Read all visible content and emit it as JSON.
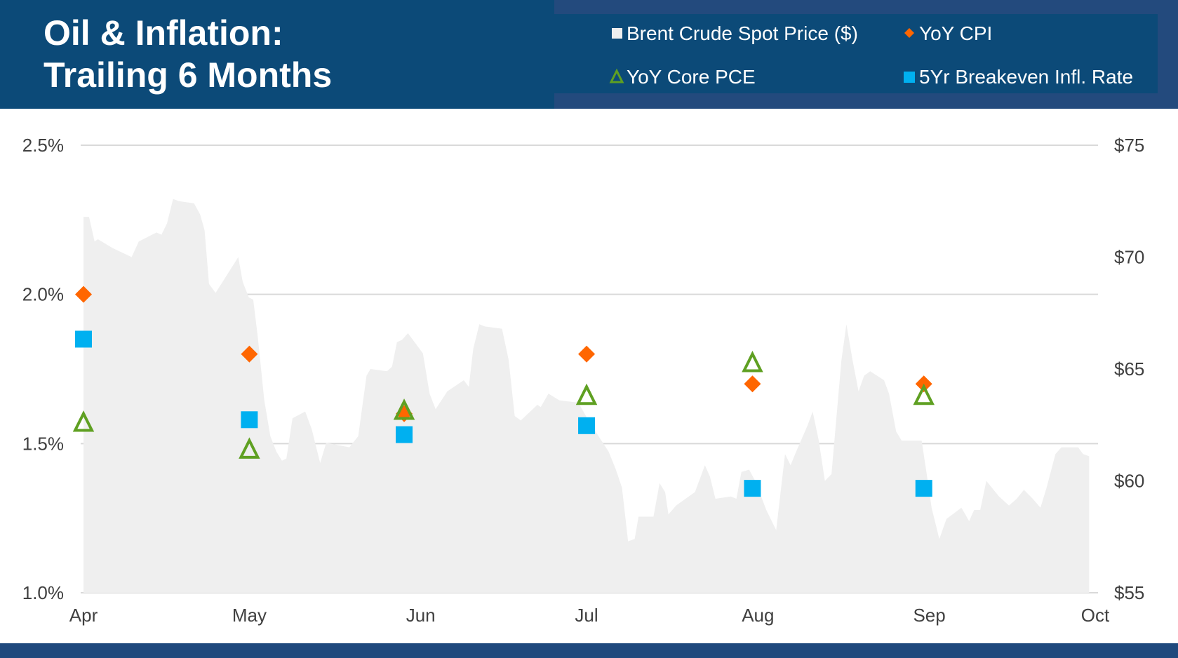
{
  "header": {
    "title_line1": "Oil & Inflation:",
    "title_line2": "Trailing 6 Months"
  },
  "colors": {
    "header_bg": "#0c4a78",
    "legend_outer_bg": "#234a7d",
    "oil": "#efefef",
    "cpi": "#ff6600",
    "core_pce": "#5fa022",
    "breakeven": "#00b0f0",
    "grid": "#d9d9d9",
    "footer": "#1f497d"
  },
  "chart_data": {
    "type": "area+scatter",
    "title": "Oil & Inflation: Trailing 6 Months",
    "x_unit": "days since Apr 1",
    "x_range": [
      0,
      183
    ],
    "x_ticks": [
      {
        "label": "Apr",
        "day": 0
      },
      {
        "label": "May",
        "day": 30
      },
      {
        "label": "Jun",
        "day": 61
      },
      {
        "label": "Jul",
        "day": 91
      },
      {
        "label": "Aug",
        "day": 122
      },
      {
        "label": "Sep",
        "day": 153
      },
      {
        "label": "Oct",
        "day": 183
      }
    ],
    "y_left": {
      "range": [
        1.0,
        2.5
      ],
      "ticks": [
        1.0,
        1.5,
        2.0,
        2.5
      ],
      "tick_labels": [
        "1.0%",
        "1.5%",
        "2.0%",
        "2.5%"
      ]
    },
    "y_right": {
      "range": [
        55,
        75
      ],
      "ticks": [
        55,
        60,
        65,
        70,
        75
      ],
      "tick_labels": [
        "$55",
        "$60",
        "$65",
        "$70",
        "$75"
      ]
    },
    "grid": "horizontal at left-axis ticks",
    "legend": "top-right (header)",
    "series": [
      {
        "name": "Brent Crude Spot Price ($)",
        "type": "area",
        "axis": "right",
        "points": [
          [
            0,
            71.8
          ],
          [
            1,
            71.8
          ],
          [
            2,
            70.7
          ],
          [
            2.6,
            70.8
          ],
          [
            5.3,
            70.4
          ],
          [
            8.7,
            70.0
          ],
          [
            10,
            70.7
          ],
          [
            13.2,
            71.1
          ],
          [
            14.1,
            71.0
          ],
          [
            15.1,
            71.5
          ],
          [
            16.2,
            72.6
          ],
          [
            17.3,
            72.5
          ],
          [
            20,
            72.4
          ],
          [
            21.1,
            71.9
          ],
          [
            21.9,
            71.2
          ],
          [
            22.7,
            68.8
          ],
          [
            23.9,
            68.4
          ],
          [
            28,
            70.0
          ],
          [
            28.8,
            68.9
          ],
          [
            29.9,
            68.2
          ],
          [
            30.7,
            68.1
          ],
          [
            31.5,
            66.5
          ],
          [
            32.7,
            63.6
          ],
          [
            33.8,
            62.0
          ],
          [
            34.9,
            61.3
          ],
          [
            35.9,
            60.9
          ],
          [
            36.7,
            61.0
          ],
          [
            37.8,
            62.8
          ],
          [
            40.1,
            63.1
          ],
          [
            41.3,
            62.3
          ],
          [
            42.8,
            60.8
          ],
          [
            43.9,
            61.7
          ],
          [
            48.1,
            61.5
          ],
          [
            49.7,
            62.0
          ],
          [
            51.2,
            64.7
          ],
          [
            51.9,
            65.0
          ],
          [
            54.9,
            64.9
          ],
          [
            55.8,
            65.1
          ],
          [
            56.7,
            66.2
          ],
          [
            57.6,
            66.3
          ],
          [
            58.7,
            66.6
          ],
          [
            61.4,
            65.7
          ],
          [
            62.6,
            63.9
          ],
          [
            63.7,
            63.2
          ],
          [
            65.8,
            64.0
          ],
          [
            68.8,
            64.5
          ],
          [
            69.7,
            64.2
          ],
          [
            70.5,
            65.9
          ],
          [
            71.6,
            67.0
          ],
          [
            72.6,
            66.9
          ],
          [
            75.7,
            66.8
          ],
          [
            76.9,
            65.4
          ],
          [
            78,
            62.9
          ],
          [
            79.1,
            62.7
          ],
          [
            82.1,
            63.4
          ],
          [
            82.7,
            63.3
          ],
          [
            84.1,
            63.9
          ],
          [
            86.1,
            63.6
          ],
          [
            89.5,
            63.5
          ],
          [
            91.8,
            62.5
          ],
          [
            92.9,
            62.1
          ],
          [
            95,
            61.3
          ],
          [
            96.3,
            60.5
          ],
          [
            97.4,
            59.7
          ],
          [
            98.5,
            57.3
          ],
          [
            99.7,
            57.4
          ],
          [
            100.4,
            58.4
          ],
          [
            103.1,
            58.4
          ],
          [
            104.2,
            59.9
          ],
          [
            105.2,
            59.5
          ],
          [
            105.8,
            58.5
          ],
          [
            107.2,
            58.9
          ],
          [
            110.6,
            59.5
          ],
          [
            112.4,
            60.7
          ],
          [
            113.3,
            60.2
          ],
          [
            114.3,
            59.2
          ],
          [
            117.1,
            59.3
          ],
          [
            118.1,
            59.2
          ],
          [
            119,
            60.4
          ],
          [
            120.4,
            60.5
          ],
          [
            121.5,
            60.0
          ],
          [
            123.5,
            58.7
          ],
          [
            125.3,
            57.8
          ],
          [
            126.9,
            61.2
          ],
          [
            127.9,
            60.7
          ],
          [
            128.9,
            61.3
          ],
          [
            131,
            62.5
          ],
          [
            131.9,
            63.1
          ],
          [
            133,
            61.8
          ],
          [
            134.1,
            60.0
          ],
          [
            135.3,
            60.3
          ],
          [
            137.1,
            65.4
          ],
          [
            138,
            67.0
          ],
          [
            139.1,
            65.4
          ],
          [
            140.2,
            64.0
          ],
          [
            141.2,
            64.7
          ],
          [
            142.3,
            64.9
          ],
          [
            144.8,
            64.5
          ],
          [
            145.7,
            63.9
          ],
          [
            147,
            62.2
          ],
          [
            148,
            61.8
          ],
          [
            149.3,
            61.8
          ],
          [
            151.6,
            61.8
          ],
          [
            152.4,
            60.5
          ],
          [
            153.4,
            58.8
          ],
          [
            154.8,
            57.4
          ],
          [
            156.1,
            58.3
          ],
          [
            158.8,
            58.8
          ],
          [
            160.2,
            58.2
          ],
          [
            161.1,
            58.7
          ],
          [
            162.2,
            58.7
          ],
          [
            163.3,
            60.0
          ],
          [
            165.6,
            59.3
          ],
          [
            167.4,
            58.9
          ],
          [
            168.8,
            59.2
          ],
          [
            170.1,
            59.6
          ],
          [
            171.7,
            59.2
          ],
          [
            173.1,
            58.8
          ],
          [
            174.2,
            59.7
          ],
          [
            175.8,
            61.2
          ],
          [
            176.9,
            61.5
          ],
          [
            179.9,
            61.5
          ],
          [
            180.8,
            61.2
          ],
          [
            181.9,
            61.1
          ]
        ]
      },
      {
        "name": "YoY CPI",
        "type": "scatter",
        "marker": "diamond",
        "axis": "left",
        "days": [
          0,
          30,
          58,
          91,
          121,
          152
        ],
        "values": [
          2.0,
          1.8,
          1.6,
          1.8,
          1.7,
          1.7
        ]
      },
      {
        "name": "YoY Core PCE",
        "type": "scatter",
        "marker": "triangle-open",
        "axis": "left",
        "days": [
          0,
          30,
          58,
          91,
          121,
          152
        ],
        "values": [
          1.57,
          1.48,
          1.61,
          1.66,
          1.77,
          1.66
        ]
      },
      {
        "name": "5Yr Breakeven Infl. Rate",
        "type": "scatter",
        "marker": "square",
        "axis": "left",
        "days": [
          0,
          30,
          58,
          91,
          121,
          152
        ],
        "values": [
          1.85,
          1.58,
          1.53,
          1.56,
          1.35,
          1.35
        ]
      }
    ]
  }
}
